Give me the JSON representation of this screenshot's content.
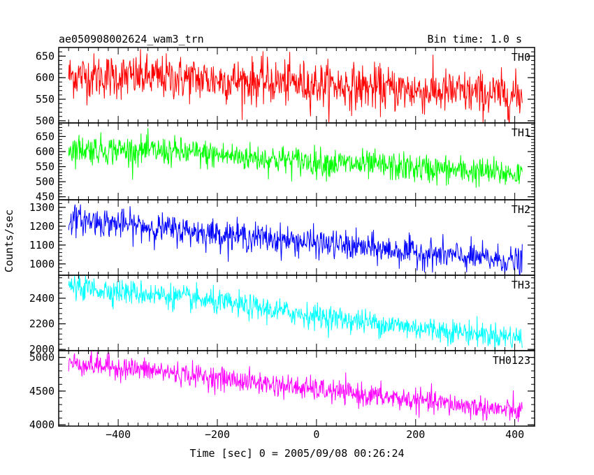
{
  "header": {
    "title": "ae050908002624_wam3_trn",
    "bin_time": "Bin time: 1.0 s"
  },
  "chart_data": {
    "type": "line",
    "title": "ae050908002624_wam3_trn",
    "xlabel": "Time [sec] 0 = 2005/09/08 00:26:24",
    "ylabel": "Counts/sec",
    "xlim": [
      -520,
      440
    ],
    "x_range_data": [
      -500,
      415
    ],
    "x_ticks": [
      -400,
      -200,
      0,
      200,
      400
    ],
    "x_tick_labels": [
      "−400",
      "−200",
      "0",
      "200",
      "400"
    ],
    "grid": false,
    "panels": [
      {
        "name": "TH0",
        "color": "#ff0000",
        "ylim": [
          495,
          670
        ],
        "yticks": [
          500,
          550,
          600,
          650
        ],
        "trend": [
          [
            -500,
            605
          ],
          [
            -300,
            600
          ],
          [
            0,
            585
          ],
          [
            200,
            570
          ],
          [
            415,
            558
          ]
        ],
        "noise_sd": 26
      },
      {
        "name": "TH1",
        "color": "#00ff00",
        "ylim": [
          440,
          695
        ],
        "yticks": [
          450,
          500,
          550,
          600,
          650
        ],
        "trend": [
          [
            -500,
            610
          ],
          [
            -300,
            600
          ],
          [
            0,
            565
          ],
          [
            200,
            545
          ],
          [
            415,
            525
          ]
        ],
        "noise_sd": 24
      },
      {
        "name": "TH2",
        "color": "#0000ff",
        "ylim": [
          940,
          1340
        ],
        "yticks": [
          1000,
          1100,
          1200,
          1300
        ],
        "trend": [
          [
            -500,
            1240
          ],
          [
            -300,
            1185
          ],
          [
            0,
            1110
          ],
          [
            200,
            1060
          ],
          [
            415,
            1010
          ]
        ],
        "noise_sd": 38
      },
      {
        "name": "TH3",
        "color": "#00ffff",
        "ylim": [
          1990,
          2580
        ],
        "yticks": [
          2000,
          2200,
          2400
        ],
        "trend": [
          [
            -500,
            2490
          ],
          [
            -300,
            2420
          ],
          [
            0,
            2260
          ],
          [
            200,
            2170
          ],
          [
            415,
            2090
          ]
        ],
        "noise_sd": 48
      },
      {
        "name": "TH0123",
        "color": "#ff00ff",
        "ylim": [
          3980,
          5100
        ],
        "yticks": [
          4000,
          4500,
          5000
        ],
        "trend": [
          [
            -500,
            4920
          ],
          [
            -300,
            4780
          ],
          [
            0,
            4520
          ],
          [
            200,
            4360
          ],
          [
            415,
            4190
          ]
        ],
        "noise_sd": 85
      }
    ]
  }
}
